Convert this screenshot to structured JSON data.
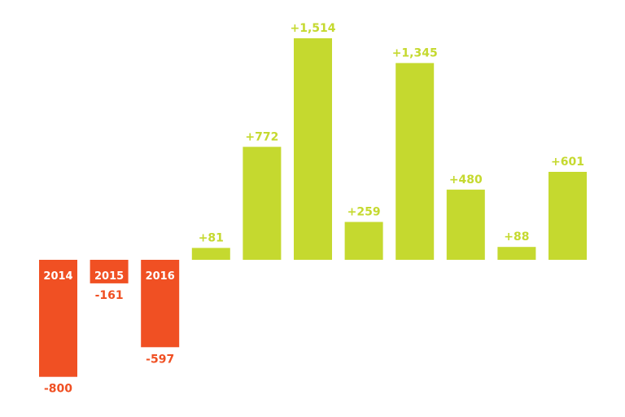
{
  "colors": {
    "positive": "#c5d92f",
    "negative": "#f05023",
    "category_text": "#ffffff",
    "background": "#ffffff"
  },
  "chart_data": {
    "type": "bar",
    "categories": [
      "2014",
      "2015",
      "2016",
      "",
      "",
      "",
      "",
      "",
      "",
      "",
      ""
    ],
    "values": [
      -800,
      -161,
      -597,
      81,
      772,
      1514,
      259,
      1345,
      480,
      88,
      601
    ],
    "value_labels": [
      "-800",
      "-161",
      "-597",
      "+81",
      "+772",
      "+1,514",
      "+259",
      "+1,345",
      "+480",
      "+88",
      "+601"
    ],
    "ylim": [
      -1010,
      1540
    ],
    "grid": false,
    "legend": "none"
  }
}
